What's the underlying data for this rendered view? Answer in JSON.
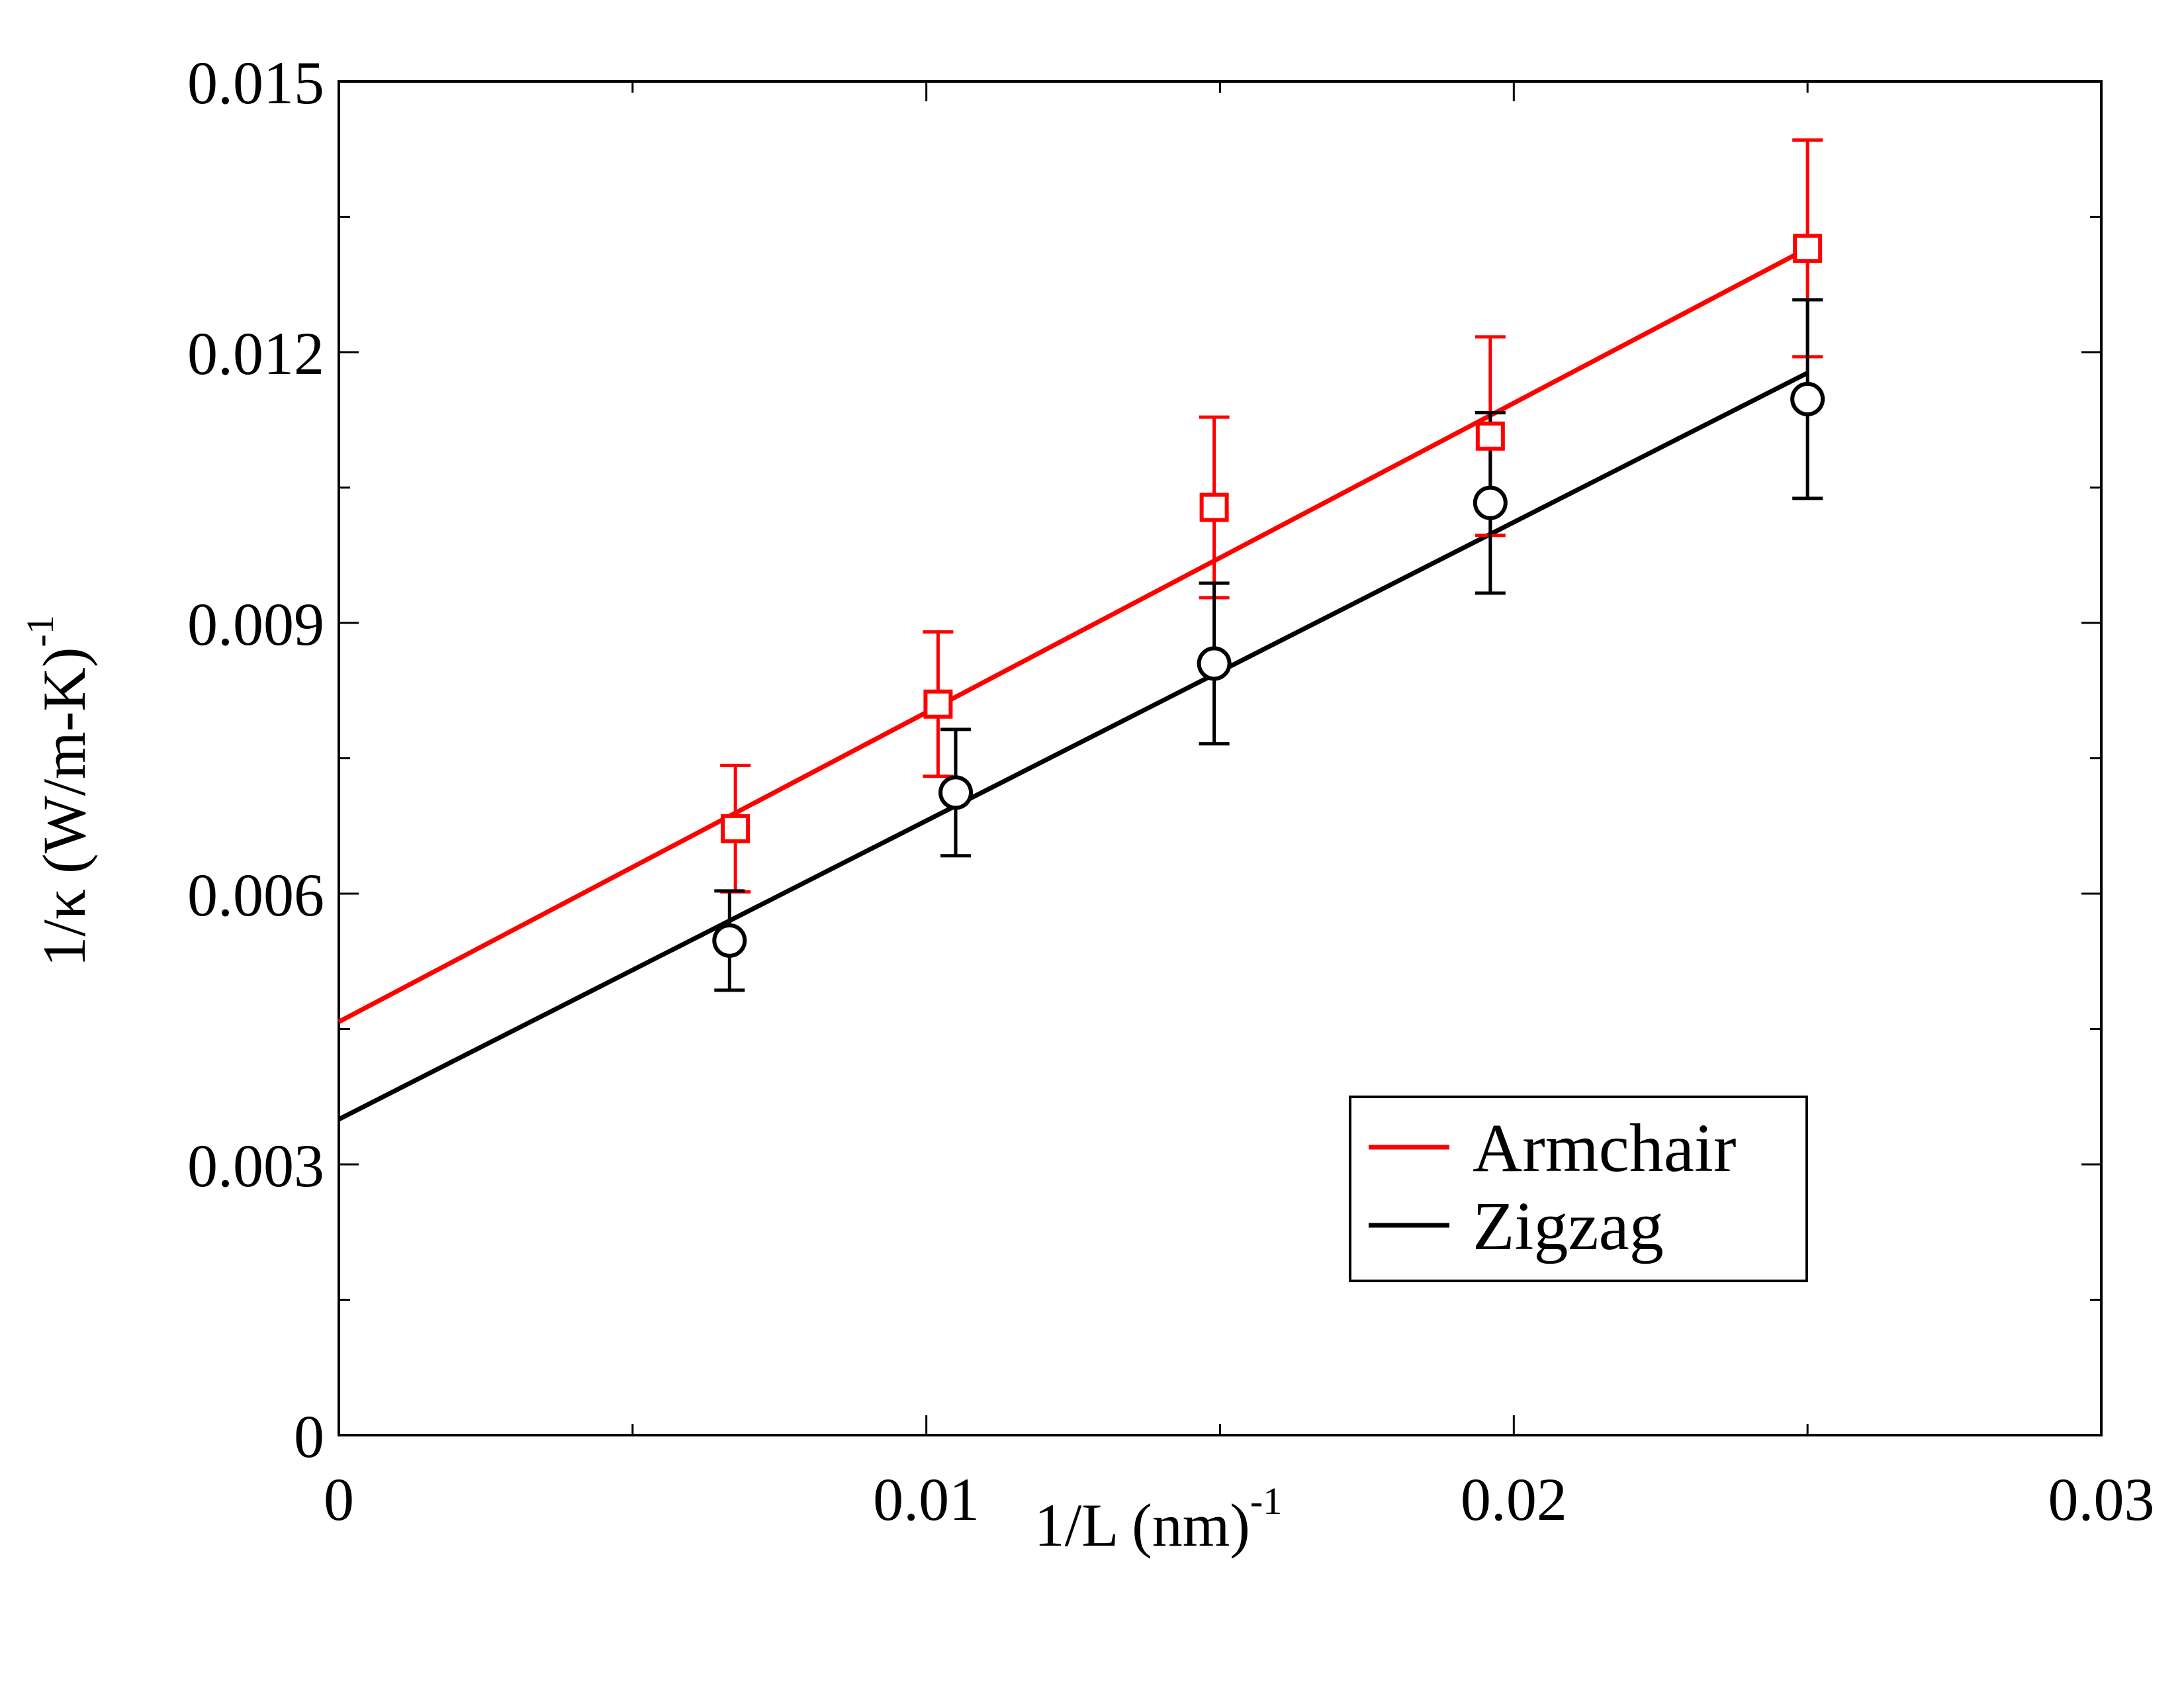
{
  "chart_data": {
    "type": "scatter",
    "xlabel": "1/L (nm)",
    "xlabel_exponent": "-1",
    "ylabel": "1/κ (W/m-K)",
    "ylabel_exponent": "-1",
    "xlim": [
      0,
      0.03
    ],
    "ylim": [
      0,
      0.015
    ],
    "x_ticks": [
      0,
      0.01,
      0.02,
      0.03
    ],
    "x_tick_labels": [
      "0",
      "0.01",
      "0.02",
      "0.03"
    ],
    "x_minor_ticks": [
      0.005,
      0.015,
      0.025
    ],
    "y_ticks": [
      0,
      0.003,
      0.006,
      0.009,
      0.012,
      0.015
    ],
    "y_tick_labels": [
      "0",
      "0.003",
      "0.006",
      "0.009",
      "0.012",
      "0.015"
    ],
    "y_minor_ticks": [
      0.0015,
      0.0045,
      0.0075,
      0.0105,
      0.0135
    ],
    "grid": false,
    "legend_position": "lower-right",
    "series": [
      {
        "name": "Armchair",
        "color": "#ff0000",
        "marker": "square",
        "x": [
          0.00675,
          0.0102,
          0.0149,
          0.0196,
          0.025
        ],
        "y": [
          0.00672,
          0.0081,
          0.01028,
          0.01107,
          0.01315
        ],
        "yerr": [
          0.0007,
          0.0008,
          0.001,
          0.0011,
          0.0012
        ],
        "fit": {
          "x": [
            0,
            0.025
          ],
          "y": [
            0.00458,
            0.01315
          ]
        }
      },
      {
        "name": "Zigzag",
        "color": "#000000",
        "marker": "circle",
        "x": [
          0.00665,
          0.0105,
          0.0149,
          0.0196,
          0.025
        ],
        "y": [
          0.00548,
          0.00712,
          0.00855,
          0.01033,
          0.01148
        ],
        "yerr": [
          0.00055,
          0.0007,
          0.00089,
          0.001,
          0.0011
        ],
        "fit": {
          "x": [
            0,
            0.025
          ],
          "y": [
            0.0035,
            0.01177
          ]
        }
      }
    ]
  }
}
